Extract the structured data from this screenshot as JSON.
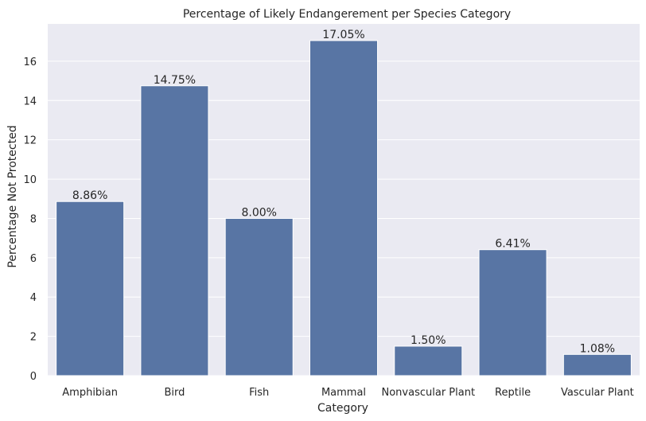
{
  "chart_data": {
    "type": "bar",
    "title": "Percentage of Likely Endangerement per Species Category",
    "xlabel": "Category",
    "ylabel": "Percentage Not Protected",
    "categories": [
      "Amphibian",
      "Bird",
      "Fish",
      "Mammal",
      "Nonvascular Plant",
      "Reptile",
      "Vascular Plant"
    ],
    "values": [
      8.86,
      14.75,
      8.0,
      17.05,
      1.5,
      6.41,
      1.08
    ],
    "data_labels": [
      "8.86%",
      "14.75%",
      "8.00%",
      "17.05%",
      "1.50%",
      "6.41%",
      "1.08%"
    ],
    "y_ticks": [
      0,
      2,
      4,
      6,
      8,
      10,
      12,
      14,
      16
    ],
    "ylim": [
      0,
      17.9
    ],
    "grid": true,
    "colors": {
      "bar": "#5875a4",
      "background": "#eaeaf2",
      "grid": "#ffffff",
      "text": "#262626"
    }
  }
}
